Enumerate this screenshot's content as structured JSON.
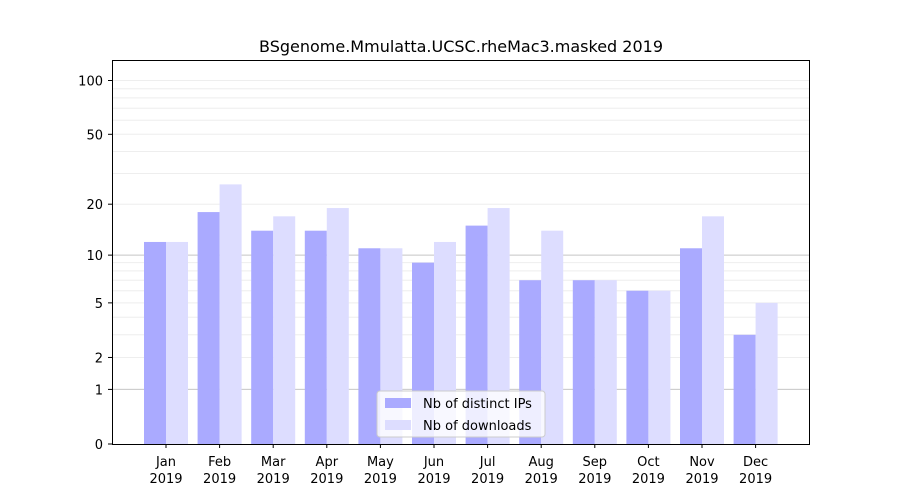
{
  "chart_data": {
    "type": "bar",
    "title": "BSgenome.Mmulatta.UCSC.rheMac3.masked 2019",
    "xlabel": "",
    "ylabel": "",
    "scale": "symlog",
    "categories": [
      {
        "month": "Jan",
        "year": "2019"
      },
      {
        "month": "Feb",
        "year": "2019"
      },
      {
        "month": "Mar",
        "year": "2019"
      },
      {
        "month": "Apr",
        "year": "2019"
      },
      {
        "month": "May",
        "year": "2019"
      },
      {
        "month": "Jun",
        "year": "2019"
      },
      {
        "month": "Jul",
        "year": "2019"
      },
      {
        "month": "Aug",
        "year": "2019"
      },
      {
        "month": "Sep",
        "year": "2019"
      },
      {
        "month": "Oct",
        "year": "2019"
      },
      {
        "month": "Nov",
        "year": "2019"
      },
      {
        "month": "Dec",
        "year": "2019"
      }
    ],
    "series": [
      {
        "name": "Nb of distinct IPs",
        "color": "#aaaaff",
        "values": [
          12,
          18,
          14,
          14,
          11,
          9,
          15,
          7,
          7,
          6,
          11,
          3
        ]
      },
      {
        "name": "Nb of downloads",
        "color": "#ddddff",
        "values": [
          12,
          26,
          17,
          19,
          11,
          12,
          19,
          14,
          7,
          6,
          17,
          5
        ]
      }
    ],
    "yticks": [
      0,
      1,
      2,
      5,
      10,
      20,
      50,
      100
    ],
    "ylim": [
      0,
      130
    ],
    "grid": true,
    "legend": "bottom-center"
  }
}
